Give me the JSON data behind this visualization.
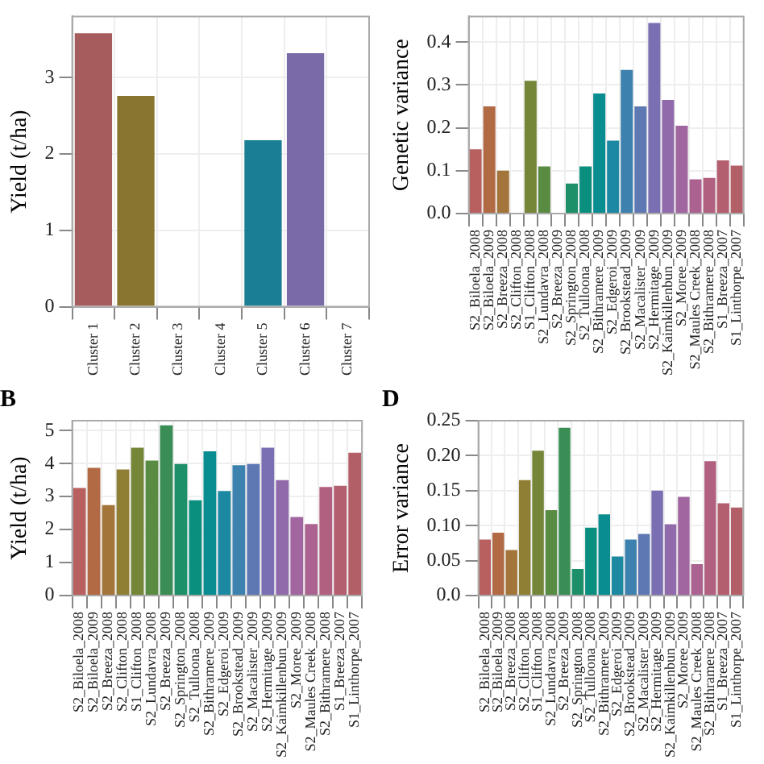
{
  "chart_data": [
    {
      "type": "bar",
      "ylabel": "Yield (t/ha)",
      "categories": [
        "Cluster 1",
        "Cluster 2",
        "Cluster 3",
        "Cluster 4",
        "Cluster 5",
        "Cluster 6",
        "Cluster 7"
      ],
      "values": [
        3.58,
        2.76,
        null,
        null,
        2.18,
        3.32,
        null
      ],
      "colors": [
        "#a65c5c",
        "#8a7530",
        "#5c8a3e",
        "#0e8a6e",
        "#1a7f94",
        "#7a6aa8",
        "#a95a8f"
      ],
      "ylim": [
        0,
        3.8
      ],
      "yticks": [
        0,
        1,
        2,
        3
      ],
      "grid": true
    },
    {
      "type": "bar",
      "ylabel": "Genetic variance",
      "categories": [
        "S2_Biloela_2008",
        "S2_Biloela_2009",
        "S2_Breeza_2008",
        "S2_Clifton_2008",
        "S1_Clifton_2008",
        "S2_Lundavra_2008",
        "S2_Breeza_2009",
        "S2_Springton_2008",
        "S2_Tulloona_2008",
        "S2_Bithramere_2009",
        "S2_Edgeroi_2009",
        "S2_Brookstead_2009",
        "S2_Macalister_2009",
        "S2_Hermitage_2009",
        "S2_Kaimkillenbun_2009",
        "S2_Moree_2009",
        "S2_Maules Creek_2008",
        "S2_Bithramere_2008",
        "S1_Breeza_2007",
        "S1_Linthorpe_2007"
      ],
      "values": [
        0.15,
        0.25,
        0.1,
        null,
        0.31,
        0.11,
        null,
        0.07,
        0.11,
        0.28,
        0.17,
        0.335,
        0.25,
        0.445,
        0.265,
        0.205,
        0.08,
        0.083,
        0.124,
        0.112
      ],
      "colors": [
        "#b8605f",
        "#b26a45",
        "#a3753a",
        "#8f7f35",
        "#768639",
        "#5a8b43",
        "#3a8e55",
        "#1d8f69",
        "#0a8f7e",
        "#0a8d91",
        "#1d88a2",
        "#3d81ae",
        "#5e78b3",
        "#7a6fb2",
        "#906aab",
        "#a1659f",
        "#ac6290",
        "#b1617f",
        "#b35f70",
        "#b25f68"
      ],
      "ylim": [
        0,
        0.46
      ],
      "yticks": [
        {
          "value": 0,
          "label": "0.0"
        },
        0.1,
        0.2,
        0.3,
        0.4
      ],
      "grid": true
    },
    {
      "type": "bar",
      "title": "B",
      "ylabel": "Yield (t/ha)",
      "categories": [
        "S2_Biloela_2008",
        "S2_Biloela_2009",
        "S2_Breeza_2008",
        "S2_Clifton_2008",
        "S1_Clifton_2008",
        "S2_Lundavra_2008",
        "S2_Breeza_2009",
        "S2_Springton_2008",
        "S2_Tulloona_2008",
        "S2_Bithramere_2009",
        "S2_Edgeroi_2009",
        "S2_Brookstead_2009",
        "S2_Macalister_2009",
        "S2_Hermitage_2009",
        "S2_Kaimkillenbun_2009",
        "S2_Moree_2009",
        "S2_Maules Creek_2008",
        "S2_Bithramere_2008",
        "S1_Breeza_2007",
        "S1_Linthorpe_2007"
      ],
      "values": [
        3.26,
        3.87,
        2.74,
        3.82,
        4.48,
        4.09,
        5.16,
        3.99,
        2.89,
        4.37,
        3.17,
        3.95,
        3.99,
        4.48,
        3.5,
        2.38,
        2.17,
        3.29,
        3.33,
        4.33
      ],
      "colors": [
        "#b8605f",
        "#b26a45",
        "#a3753a",
        "#8f7f35",
        "#768639",
        "#5a8b43",
        "#3a8e55",
        "#1d8f69",
        "#0a8f7e",
        "#0a8d91",
        "#1d88a2",
        "#3d81ae",
        "#5e78b3",
        "#7a6fb2",
        "#906aab",
        "#a1659f",
        "#ac6290",
        "#b1617f",
        "#b35f70",
        "#b25f68"
      ],
      "ylim": [
        0,
        5.3
      ],
      "yticks": [
        0,
        1,
        2,
        3,
        4,
        5
      ],
      "grid": true
    },
    {
      "type": "bar",
      "title": "D",
      "ylabel": "Error variance",
      "categories": [
        "S2_Biloela_2008",
        "S2_Biloela_2009",
        "S2_Breeza_2008",
        "S2_Clifton_2008",
        "S1_Clifton_2008",
        "S2_Lundavra_2008",
        "S2_Breeza_2009",
        "S2_Springton_2008",
        "S2_Tulloona_2008",
        "S2_Bithramere_2009",
        "S2_Edgeroi_2009",
        "S2_Brookstead_2009",
        "S2_Macalister_2009",
        "S2_Hermitage_2009",
        "S2_Kaimkillenbun_2009",
        "S2_Moree_2009",
        "S2_Maules Creek_2008",
        "S2_Bithramere_2008",
        "S1_Breeza_2007",
        "S1_Linthorpe_2007"
      ],
      "values": [
        0.08,
        0.09,
        0.065,
        0.165,
        0.207,
        0.122,
        0.24,
        0.038,
        0.097,
        0.116,
        0.056,
        0.08,
        0.088,
        0.15,
        0.102,
        0.141,
        0.045,
        0.192,
        0.132,
        0.126
      ],
      "colors": [
        "#b8605f",
        "#b26a45",
        "#a3753a",
        "#8f7f35",
        "#768639",
        "#5a8b43",
        "#3a8e55",
        "#1d8f69",
        "#0a8f7e",
        "#0a8d91",
        "#1d88a2",
        "#3d81ae",
        "#5e78b3",
        "#7a6fb2",
        "#906aab",
        "#a1659f",
        "#ac6290",
        "#b1617f",
        "#b35f70",
        "#b25f68"
      ],
      "ylim": [
        0,
        0.25
      ],
      "yticks": [
        {
          "value": 0,
          "label": "0.0"
        },
        0.05,
        {
          "value": 0.1,
          "label": "0.10"
        },
        0.15,
        {
          "value": 0.2,
          "label": "0.20"
        },
        0.25
      ],
      "grid": true
    }
  ]
}
